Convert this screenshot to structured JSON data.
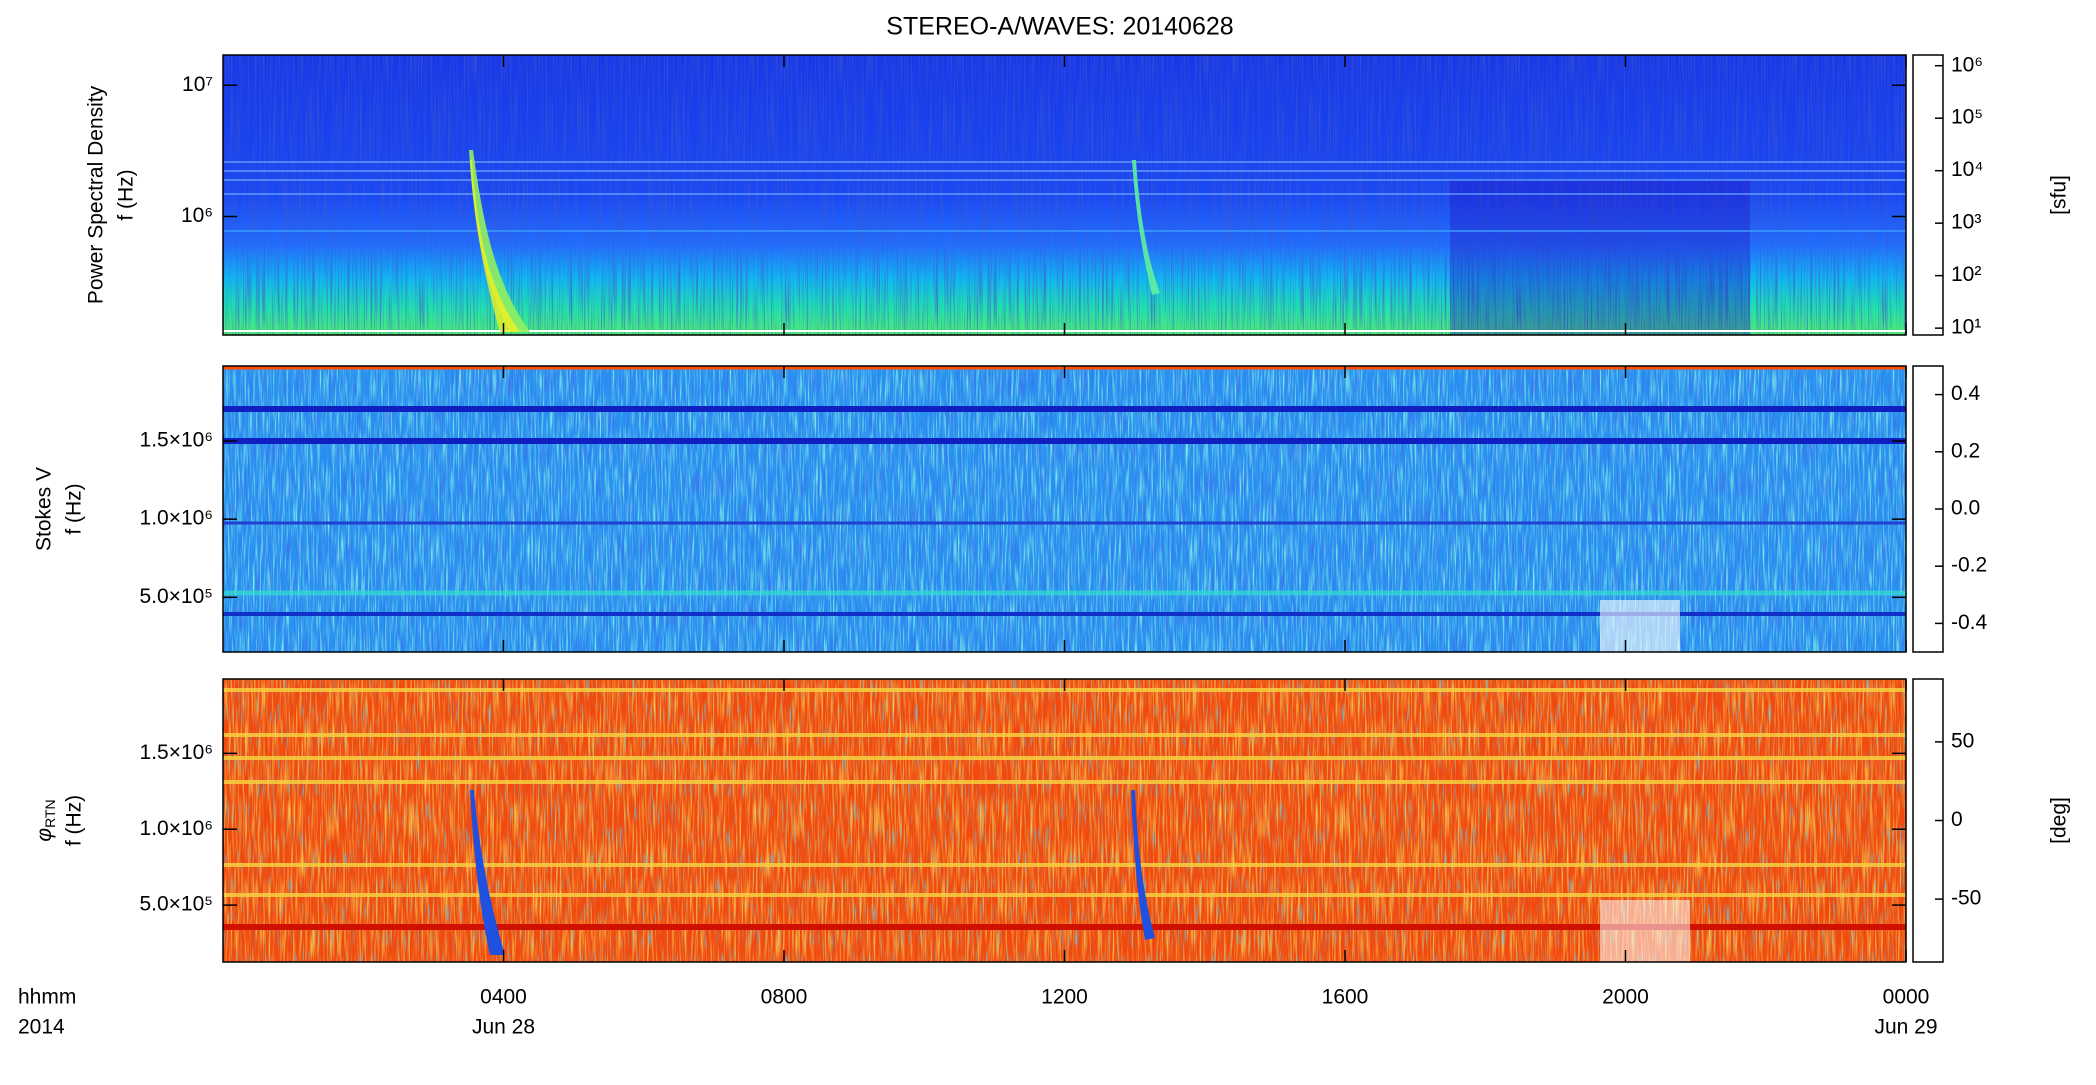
{
  "title": "STEREO-A/WAVES: 20140628",
  "chart_data": [
    {
      "type": "heatmap",
      "ylabel": [
        "Power Spectral Density",
        "f (Hz)"
      ],
      "ylog": true,
      "xlim": [
        0,
        24
      ],
      "xticks": [
        {
          "value": 4,
          "label": "0400"
        },
        {
          "value": 8,
          "label": "0800"
        },
        {
          "value": 12,
          "label": "1200"
        },
        {
          "value": 16,
          "label": "1600"
        },
        {
          "value": 20,
          "label": "2000"
        },
        {
          "value": 24,
          "label": "0000"
        }
      ],
      "ylim": [
        125000,
        17000000
      ],
      "yticks": [
        {
          "value": 1000000,
          "label": "10⁶"
        },
        {
          "value": 10000000,
          "label": "10⁷"
        }
      ],
      "colorbar": {
        "log": true,
        "clim": [
          7.4,
          1600000
        ],
        "label": "[sfu]",
        "ticks": [
          {
            "value": 10,
            "label": "10¹"
          },
          {
            "value": 100,
            "label": "10²"
          },
          {
            "value": 1000,
            "label": "10³"
          },
          {
            "value": 10000,
            "label": "10⁴"
          },
          {
            "value": 100000,
            "label": "10⁵"
          },
          {
            "value": 1000000,
            "label": "10⁶"
          }
        ]
      }
    },
    {
      "type": "heatmap",
      "ylabel": [
        "Stokes V",
        "f (Hz)"
      ],
      "ylog": false,
      "xlim": [
        0,
        24
      ],
      "xticks": [
        {
          "value": 4,
          "label": "0400"
        },
        {
          "value": 8,
          "label": "0800"
        },
        {
          "value": 12,
          "label": "1200"
        },
        {
          "value": 16,
          "label": "1600"
        },
        {
          "value": 20,
          "label": "2000"
        },
        {
          "value": 24,
          "label": "0000"
        }
      ],
      "ylim": [
        150000,
        1980000
      ],
      "yticks": [
        {
          "value": 500000,
          "label": "5.0×10⁵"
        },
        {
          "value": 1000000,
          "label": "1.0×10⁶"
        },
        {
          "value": 1500000,
          "label": "1.5×10⁶"
        }
      ],
      "colorbar": {
        "log": false,
        "clim": [
          -0.5,
          0.5
        ],
        "ticks": [
          -0.4,
          -0.2,
          {
            "value": 0,
            "label": "0.0"
          },
          0.2,
          0.4
        ]
      }
    },
    {
      "type": "heatmap",
      "ylabel_symbol": "φ",
      "ylabel_subscript": "RTN",
      "ylabel": [
        "f (Hz)"
      ],
      "ylog": false,
      "xlim": [
        0,
        24
      ],
      "xticks": [
        {
          "value": 4,
          "label": "0400"
        },
        {
          "value": 8,
          "label": "0800"
        },
        {
          "value": 12,
          "label": "1200"
        },
        {
          "value": 16,
          "label": "1600"
        },
        {
          "value": 20,
          "label": "2000"
        },
        {
          "value": 24,
          "label": "0000"
        }
      ],
      "ylim": [
        125000,
        1990000
      ],
      "yticks": [
        {
          "value": 500000,
          "label": "5.0×10⁵"
        },
        {
          "value": 1000000,
          "label": "1.0×10⁶"
        },
        {
          "value": 1500000,
          "label": "1.5×10⁶"
        }
      ],
      "colorbar": {
        "log": false,
        "clim": [
          -90,
          90
        ],
        "label": "[deg]",
        "ticks": [
          -50,
          0,
          50
        ]
      },
      "xlabel_lines": [
        "hhmm",
        "2014"
      ],
      "date_labels": [
        {
          "value": 4,
          "label": "Jun 28"
        },
        {
          "value": 24,
          "label": "Jun 29"
        }
      ]
    }
  ]
}
